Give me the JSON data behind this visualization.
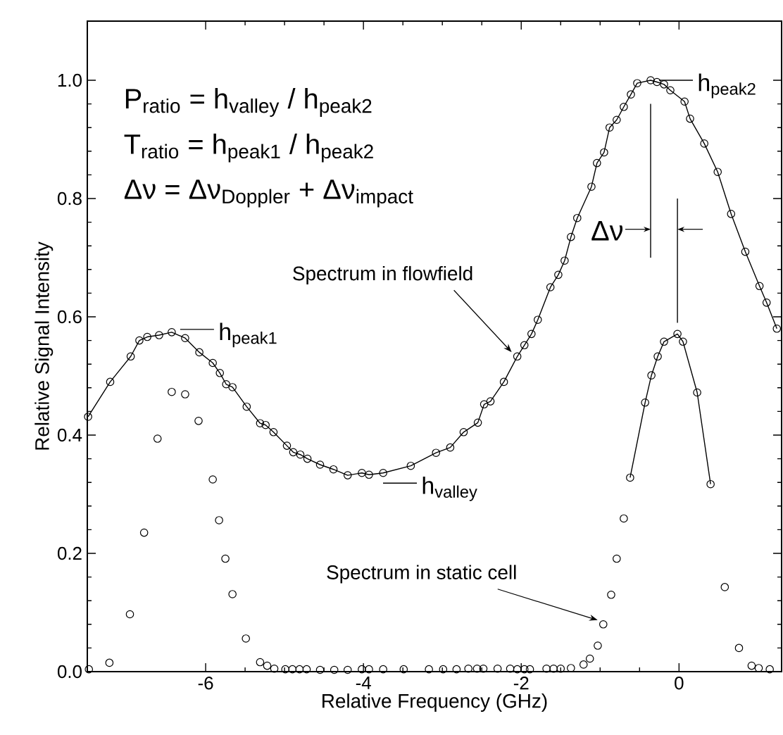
{
  "chart_data": {
    "type": "scatter",
    "xlabel": "Relative Frequency (GHz)",
    "ylabel": "Relative Signal Intensity",
    "xlim": [
      -7.5,
      1.3
    ],
    "ylim": [
      0,
      1.1
    ],
    "xticks": [
      -6,
      -4,
      -2,
      0
    ],
    "yticks": [
      {
        "value": 0,
        "label": "0.0"
      },
      {
        "value": 0.2,
        "label": "0.2"
      },
      {
        "value": 0.4,
        "label": "0.4"
      },
      {
        "value": 0.6,
        "label": "0.6"
      },
      {
        "value": 0.8,
        "label": "0.8"
      },
      {
        "value": 1.0,
        "label": "1.0"
      }
    ],
    "grid": false,
    "marker": "circle",
    "series": [
      {
        "color": "#000000",
        "x": [
          -7.48,
          -7.22,
          -6.96,
          -6.78,
          -6.61,
          -6.43,
          -6.26,
          -6.09,
          -5.91,
          -5.83,
          -5.75,
          -5.66,
          -5.49,
          -5.31,
          -5.22,
          -5.13,
          -4.99,
          -4.9,
          -4.81,
          -4.72,
          -4.55,
          -4.37,
          -4.2,
          -4.02,
          -3.93,
          -3.75,
          -3.49,
          -3.17,
          -2.99,
          -2.82,
          -2.67,
          -2.56,
          -2.48,
          -2.3,
          -2.14,
          -2.05,
          -1.96,
          -1.89,
          -1.68,
          -1.59,
          -1.5,
          -1.37,
          -1.21,
          -1.13,
          -1.03,
          -0.96,
          -0.86,
          -0.79,
          -0.7,
          -0.62,
          -0.43,
          -0.35,
          -0.27,
          -0.19,
          -0.02,
          0.05,
          0.23,
          0.4,
          0.58,
          0.76,
          0.92,
          1.01,
          1.15
        ],
        "values": [
          0.004,
          0.015,
          0.097,
          0.235,
          0.394,
          0.473,
          0.469,
          0.424,
          0.325,
          0.256,
          0.191,
          0.131,
          0.056,
          0.016,
          0.01,
          0.005,
          0.004,
          0.004,
          0.004,
          0.004,
          0.003,
          0.003,
          0.003,
          0.004,
          0.004,
          0.004,
          0.004,
          0.004,
          0.004,
          0.004,
          0.005,
          0.005,
          0.005,
          0.005,
          0.005,
          0.004,
          0.004,
          0.004,
          0.005,
          0.005,
          0.005,
          0.006,
          0.012,
          0.022,
          0.044,
          0.08,
          0.13,
          0.191,
          0.259,
          0.328,
          0.455,
          0.501,
          0.533,
          0.558,
          0.571,
          0.558,
          0.472,
          0.317,
          0.143,
          0.04,
          0.01,
          0.006,
          0.004
        ]
      },
      {
        "type": "line",
        "marker": "none",
        "color": "#000000",
        "x": [
          -0.62,
          -0.43,
          -0.35,
          -0.27,
          -0.19,
          -0.02,
          0.05,
          0.23,
          0.4
        ],
        "values": [
          0.328,
          0.455,
          0.501,
          0.533,
          0.558,
          0.571,
          0.558,
          0.472,
          0.317
        ]
      },
      {
        "type": "line",
        "color": "#000000",
        "x": [
          -7.49,
          -7.21,
          -6.95,
          -6.84,
          -6.74,
          -6.59,
          -6.43,
          -6.26,
          -6.08,
          -5.91,
          -5.82,
          -5.74,
          -5.66,
          -5.48,
          -5.31,
          -5.24,
          -5.14,
          -4.97,
          -4.89,
          -4.8,
          -4.71,
          -4.55,
          -4.38,
          -4.2,
          -4.02,
          -3.93,
          -3.75,
          -3.4,
          -3.08,
          -2.9,
          -2.73,
          -2.55,
          -2.47,
          -2.39,
          -2.22,
          -2.05,
          -1.96,
          -1.87,
          -1.79,
          -1.63,
          -1.53,
          -1.45,
          -1.37,
          -1.29,
          -1.11,
          -1.04,
          -0.95,
          -0.88,
          -0.79,
          -0.7,
          -0.61,
          -0.53,
          -0.36,
          -0.28,
          -0.19,
          -0.11,
          0.07,
          0.14,
          0.32,
          0.49,
          0.66,
          0.84,
          1.02,
          1.11,
          1.24
        ],
        "values": [
          0.431,
          0.49,
          0.533,
          0.56,
          0.566,
          0.569,
          0.574,
          0.564,
          0.54,
          0.522,
          0.505,
          0.486,
          0.481,
          0.448,
          0.42,
          0.417,
          0.405,
          0.382,
          0.371,
          0.367,
          0.36,
          0.35,
          0.342,
          0.332,
          0.336,
          0.333,
          0.336,
          0.348,
          0.37,
          0.379,
          0.405,
          0.421,
          0.452,
          0.457,
          0.49,
          0.533,
          0.552,
          0.571,
          0.595,
          0.65,
          0.671,
          0.695,
          0.735,
          0.767,
          0.82,
          0.86,
          0.878,
          0.92,
          0.933,
          0.955,
          0.976,
          0.995,
          1.0,
          0.997,
          0.993,
          0.983,
          0.964,
          0.935,
          0.893,
          0.845,
          0.774,
          0.71,
          0.652,
          0.624,
          0.58
        ]
      }
    ],
    "annotations": [
      "P$_{ratio}$ = h$_{valley}$ / h$_{peak2}$",
      "T$_{ratio}$ = h$_{peak1}$ / h$_{peak2}$",
      "Δν = Δν$_{Doppler}$ + Δν$_{impact}$",
      {
        "text": "h$_{peak1}$",
        "x": -6.43,
        "y": 0.574
      },
      {
        "text": "h$_{peak2}$",
        "x": -0.36,
        "y": 1.0
      },
      {
        "text": "h$_{valley}$",
        "x": -3.93,
        "y": 0.333
      },
      {
        "text": "Spectrum in flowfield",
        "x": -2.05,
        "y": 0.533
      },
      {
        "text": "Spectrum in static cell",
        "x": -0.96,
        "y": 0.08
      },
      "Δν"
    ]
  }
}
